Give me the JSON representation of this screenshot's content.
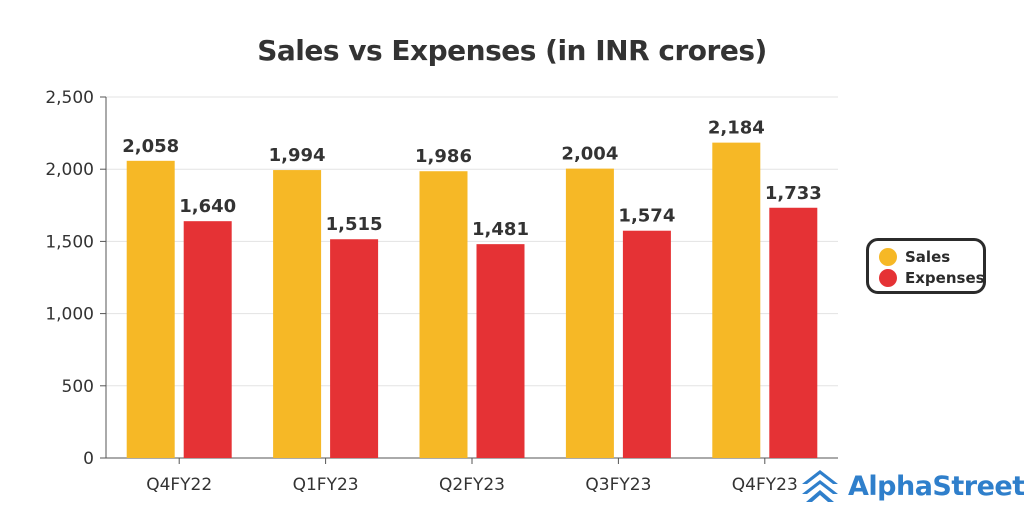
{
  "chart_data": {
    "type": "bar",
    "title": "Sales vs Expenses (in INR crores)",
    "categories": [
      "Q4FY22",
      "Q1FY23",
      "Q2FY23",
      "Q3FY23",
      "Q4FY23"
    ],
    "series": [
      {
        "name": "Sales",
        "color": "#F6B826",
        "values": [
          2058,
          1994,
          1986,
          2004,
          2184
        ],
        "labels": [
          "2,058",
          "1,994",
          "1,986",
          "2,004",
          "2,184"
        ]
      },
      {
        "name": "Expenses",
        "color": "#E53235",
        "values": [
          1640,
          1515,
          1481,
          1574,
          1733
        ],
        "labels": [
          "1,640",
          "1,515",
          "1,481",
          "1,574",
          "1,733"
        ]
      }
    ],
    "ylim": [
      0,
      2500
    ],
    "yticks": [
      0,
      500,
      1000,
      1500,
      2000,
      2500
    ],
    "ytick_labels": [
      "0",
      "500",
      "1,000",
      "1,500",
      "2,000",
      "2,500"
    ],
    "grid": true,
    "legend_position": "right",
    "xlabel": "",
    "ylabel": ""
  },
  "brand": {
    "name": "AlphaStreet",
    "color": "#2F7FCB",
    "icon": "alphastreet-logo-icon"
  }
}
